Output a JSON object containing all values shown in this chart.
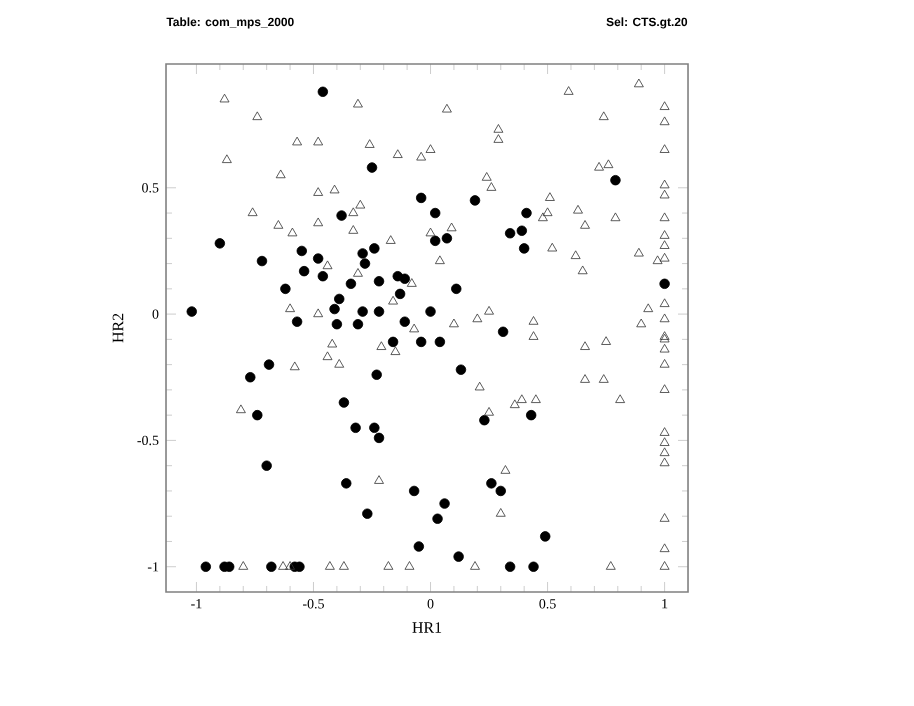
{
  "chart_data": {
    "type": "scatter",
    "xlabel": "HR1",
    "ylabel": "HR2",
    "annotations": [
      "Table: com_mps_2000",
      "Sel: CTS.gt.20"
    ],
    "xlim": [
      -1.13,
      1.1
    ],
    "ylim": [
      -1.1,
      0.99
    ],
    "xticks": [
      -1,
      -0.5,
      0,
      0.5,
      1
    ],
    "yticks": [
      -1,
      -0.5,
      0,
      0.5
    ],
    "series": [
      {
        "color": "#000000",
        "marker": "circle",
        "x": [
          -0.46,
          -0.25,
          -0.04,
          0.19,
          0.41,
          -0.38,
          0.02,
          0.34,
          0.39,
          0.4,
          -0.9,
          -0.72,
          -0.55,
          -0.54,
          -0.48,
          -0.46,
          -0.29,
          -0.24,
          -0.28,
          0.02,
          0.07,
          -0.62,
          -0.34,
          -0.22,
          -0.14,
          -0.11,
          -0.13,
          0.11,
          -0.39,
          -0.41,
          -1.02,
          -0.57,
          -0.4,
          -0.31,
          -0.29,
          -0.22,
          -0.11,
          0.0,
          -0.16,
          -0.04,
          0.04,
          0.31,
          0.79,
          1.0,
          -0.69,
          -0.77,
          -0.23,
          0.13,
          -0.74,
          -0.37,
          -0.32,
          -0.24,
          -0.22,
          0.23,
          0.43,
          -0.7,
          -0.36,
          -0.07,
          0.26,
          0.3,
          0.06,
          -0.27,
          0.03,
          -0.05,
          0.12,
          0.49,
          0.44,
          -0.96,
          -0.88,
          -0.86,
          -0.68,
          -0.58,
          -0.56,
          0.34
        ],
        "values": [
          0.88,
          0.58,
          0.46,
          0.45,
          0.4,
          0.39,
          0.4,
          0.32,
          0.33,
          0.26,
          0.28,
          0.21,
          0.25,
          0.17,
          0.22,
          0.15,
          0.24,
          0.26,
          0.2,
          0.29,
          0.3,
          0.1,
          0.12,
          0.13,
          0.15,
          0.14,
          0.08,
          0.1,
          0.06,
          0.02,
          0.01,
          -0.03,
          -0.04,
          -0.04,
          0.01,
          0.01,
          -0.03,
          0.01,
          -0.11,
          -0.11,
          -0.11,
          -0.07,
          0.53,
          0.12,
          -0.2,
          -0.25,
          -0.24,
          -0.22,
          -0.4,
          -0.35,
          -0.45,
          -0.45,
          -0.49,
          -0.42,
          -0.4,
          -0.6,
          -0.67,
          -0.7,
          -0.67,
          -0.7,
          -0.75,
          -0.79,
          -0.81,
          -0.92,
          -0.96,
          -0.88,
          -1.0,
          -1.0,
          -1.0,
          -1.0,
          -1.0,
          -1.0,
          -1.0,
          -1.0
        ]
      },
      {
        "color": "#333333",
        "marker": "triangle",
        "x": [
          -0.88,
          -0.74,
          -0.31,
          0.07,
          -0.57,
          -0.48,
          -0.26,
          -0.14,
          -0.04,
          0.0,
          0.29,
          0.29,
          -0.87,
          -0.64,
          -0.48,
          -0.41,
          0.24,
          0.26,
          -0.76,
          -0.65,
          -0.59,
          -0.48,
          -0.33,
          -0.3,
          -0.33,
          -0.17,
          0.0,
          0.09,
          0.04,
          -0.44,
          -0.31,
          -0.08,
          -0.16,
          -0.6,
          -0.48,
          -0.07,
          0.1,
          0.2,
          0.25,
          0.44,
          0.44,
          0.59,
          0.89,
          0.74,
          1.0,
          1.0,
          1.0,
          0.72,
          0.76,
          1.0,
          1.0,
          0.51,
          0.5,
          0.48,
          0.63,
          0.66,
          0.79,
          1.0,
          0.52,
          0.62,
          0.65,
          0.89,
          0.97,
          1.0,
          1.0,
          1.0,
          1.0,
          0.93,
          0.9,
          0.66,
          0.75,
          1.0,
          1.0,
          1.0,
          1.0,
          1.0,
          0.66,
          0.74,
          0.81,
          0.45,
          1.0,
          1.0,
          1.0,
          1.0,
          1.0,
          1.0,
          1.0,
          1.0,
          0.77,
          -0.42,
          -0.21,
          -0.15,
          -0.44,
          -0.39,
          -0.58,
          -0.81,
          0.21,
          0.25,
          0.36,
          0.39,
          -0.22,
          0.32,
          0.3,
          -0.8,
          -0.63,
          -0.6,
          -0.43,
          -0.37,
          -0.18,
          -0.09,
          0.19
        ],
        "values": [
          0.85,
          0.78,
          0.83,
          0.81,
          0.68,
          0.68,
          0.67,
          0.63,
          0.62,
          0.65,
          0.73,
          0.69,
          0.61,
          0.55,
          0.48,
          0.49,
          0.54,
          0.5,
          0.4,
          0.35,
          0.32,
          0.36,
          0.4,
          0.43,
          0.33,
          0.29,
          0.32,
          0.34,
          0.21,
          0.19,
          0.16,
          0.12,
          0.05,
          0.02,
          0.0,
          -0.06,
          -0.04,
          -0.02,
          0.01,
          -0.03,
          -0.09,
          0.88,
          0.91,
          0.78,
          0.82,
          0.76,
          0.65,
          0.58,
          0.59,
          0.51,
          0.47,
          0.46,
          0.4,
          0.38,
          0.41,
          0.35,
          0.38,
          0.38,
          0.26,
          0.23,
          0.17,
          0.24,
          0.21,
          0.31,
          0.27,
          0.22,
          0.04,
          0.02,
          -0.04,
          -0.13,
          -0.11,
          -0.02,
          -0.09,
          -0.1,
          -0.14,
          -0.2,
          -0.26,
          -0.26,
          -0.34,
          -0.34,
          -0.3,
          -0.47,
          -0.51,
          -0.55,
          -0.59,
          -0.81,
          -0.93,
          -1.0,
          -1.0,
          -0.12,
          -0.13,
          -0.15,
          -0.17,
          -0.2,
          -0.21,
          -0.38,
          -0.29,
          -0.39,
          -0.36,
          -0.34,
          -0.66,
          -0.62,
          -0.79,
          -1.0,
          -1.0,
          -1.0,
          -1.0,
          -1.0,
          -1.0,
          -1.0,
          -1.0
        ]
      }
    ]
  }
}
